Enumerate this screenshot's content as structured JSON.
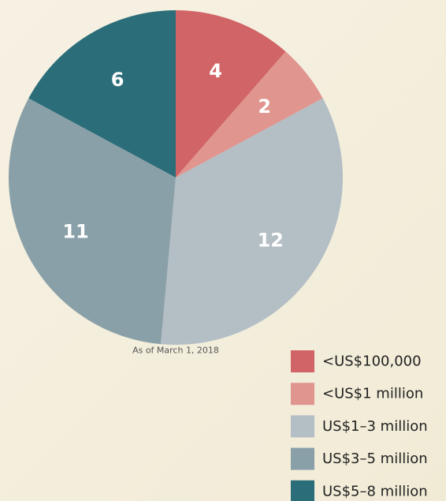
{
  "chart_data": {
    "type": "pie",
    "categories": [
      "<US$100,000",
      "<US$1 million",
      "US$1–3 million",
      "US$3–5 million",
      "US$5–8 million"
    ],
    "values": [
      4,
      2,
      12,
      11,
      6
    ],
    "colors": [
      "#d06466",
      "#e0958f",
      "#b3bec5",
      "#8aa0a8",
      "#2b6e7a"
    ],
    "annotation": "As of March 1, 2018",
    "legend": "bottom-right"
  }
}
